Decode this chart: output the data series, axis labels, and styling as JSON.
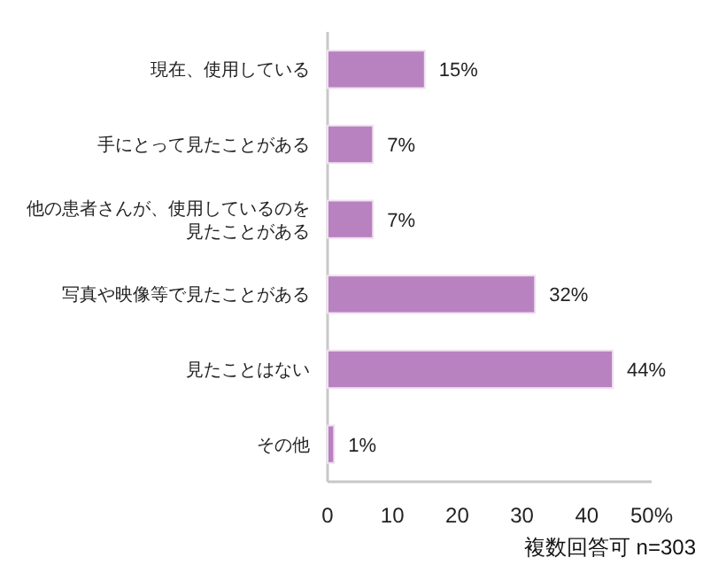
{
  "chart_data": {
    "type": "bar",
    "orientation": "horizontal",
    "categories": [
      "現在、使用している",
      "手にとって見たことがある",
      "他の患者さんが、使用しているのを見たことがある",
      "写真や映像等で見たことがある",
      "見たことはない",
      "その他"
    ],
    "series": [
      {
        "color": "#b882c0",
        "values": [
          15,
          7,
          7,
          32,
          44,
          1
        ],
        "value_labels": [
          "15%",
          "7%",
          "7%",
          "32%",
          "44%",
          "1%"
        ]
      }
    ],
    "xlim": [
      0,
      50
    ],
    "xticks": [
      0,
      10,
      20,
      30,
      40,
      {
        "value": 50,
        "label": "50%"
      }
    ],
    "grid": false,
    "annotations": [
      "複数回答可 n=303"
    ]
  }
}
